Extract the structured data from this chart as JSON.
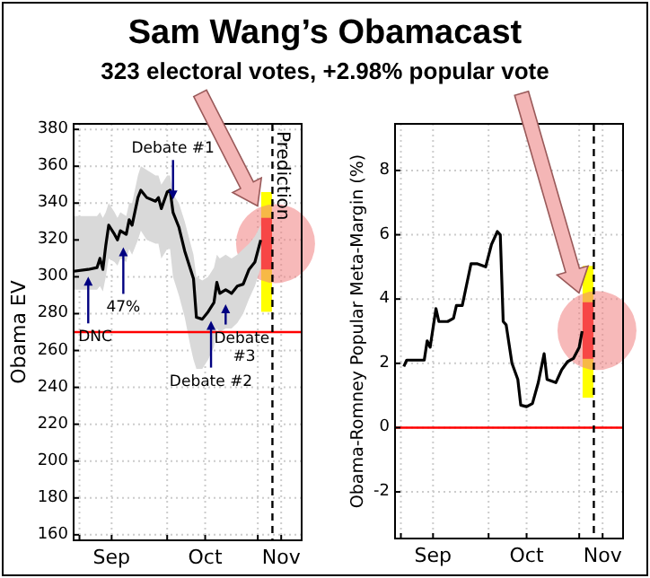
{
  "chart_data": [
    {
      "type": "line",
      "title": "Sam Wang’s Obamacast",
      "subtitle": "323 electoral votes, +2.98% popular vote",
      "ylabel": "Obama EV",
      "xlim": [
        "--08-30",
        "--11-16"
      ],
      "ylim": [
        157,
        383
      ],
      "yticks": [
        160,
        180,
        200,
        220,
        240,
        260,
        280,
        300,
        320,
        340,
        360,
        380
      ],
      "xticks": [
        {
          "value": "--09-01",
          "label": null
        },
        {
          "value": "--09-12",
          "label": "Sep"
        },
        {
          "value": "--10-01",
          "label": null
        },
        {
          "value": "--10-14",
          "label": "Oct"
        },
        {
          "value": "--11-01",
          "label": null
        },
        {
          "value": "--11-09",
          "label": "Nov"
        }
      ],
      "grid": true,
      "series": [
        {
          "color": "#000000",
          "x": [
            "--08-30",
            "--09-04",
            "--09-07",
            "--09-08",
            "--09-09",
            "--09-10",
            "--09-11",
            "--09-13",
            "--09-14",
            "--09-15",
            "--09-17",
            "--09-18",
            "--09-19",
            "--09-21",
            "--09-22",
            "--09-24",
            "--09-27",
            "--09-28",
            "--09-29",
            "--10-01",
            "--10-02",
            "--10-03",
            "--10-05",
            "--10-07",
            "--10-09",
            "--10-10",
            "--10-11",
            "--10-13",
            "--10-15",
            "--10-17",
            "--10-18",
            "--10-19",
            "--10-21",
            "--10-23",
            "--10-25",
            "--10-27",
            "--10-29",
            "--10-31",
            "--11-02"
          ],
          "values": [
            303,
            304,
            305,
            310,
            304,
            317,
            328,
            323,
            320,
            325,
            323,
            331,
            328,
            343,
            347,
            343,
            341,
            343,
            337,
            346,
            347,
            335,
            327,
            314,
            304,
            299,
            278,
            277,
            281,
            286,
            297,
            291,
            293,
            291,
            295,
            296,
            304,
            308,
            320
          ],
          "upper": [
            333,
            333,
            333,
            335,
            332,
            335,
            340,
            335,
            332,
            335,
            333,
            340,
            340,
            355,
            360,
            358,
            355,
            355,
            350,
            355,
            355,
            345,
            340,
            330,
            318,
            312,
            300,
            298,
            300,
            305,
            312,
            310,
            312,
            310,
            312,
            315,
            318,
            322,
            328
          ],
          "lower": [
            293,
            293,
            293,
            295,
            292,
            300,
            310,
            308,
            306,
            310,
            308,
            315,
            312,
            320,
            325,
            320,
            318,
            318,
            310,
            315,
            315,
            300,
            290,
            278,
            262,
            255,
            250,
            250,
            255,
            262,
            272,
            270,
            272,
            272,
            275,
            280,
            288,
            295,
            305
          ]
        },
        {
          "type": "bar",
          "color": "#ffff00",
          "x": [
            "--11-04"
          ],
          "base": [
            281
          ],
          "values": [
            65
          ]
        },
        {
          "type": "bar",
          "color": "#ff0000",
          "x": [
            "--11-04"
          ],
          "base": [
            304
          ],
          "values": [
            28
          ]
        }
      ],
      "ref_lines": [
        {
          "axis": "y",
          "value": 270,
          "color": "#ff0000"
        },
        {
          "axis": "x",
          "value": "--11-06",
          "label": "Prediction",
          "color": "#000000",
          "line_style": "dashed"
        }
      ],
      "annotations": [
        {
          "text": "Debate #1",
          "x": "--10-03",
          "y": 340
        },
        {
          "text": "47%",
          "x": "--09-16",
          "y": 318
        },
        {
          "text": "DNC",
          "x": "--09-04",
          "y": 302
        },
        {
          "text": "Debate #2",
          "x": "--10-16",
          "y": 278
        },
        {
          "text": "Debate #3",
          "x": "--10-21",
          "y": 287
        }
      ]
    },
    {
      "type": "line",
      "ylabel": "Obama-Romney Popular Meta-Margin (%)",
      "xlim": [
        "--08-30",
        "--11-16"
      ],
      "ylim": [
        -3.45,
        9.45
      ],
      "yticks": [
        -2,
        0,
        2,
        4,
        6,
        8
      ],
      "xticks": [
        {
          "value": "--09-01",
          "label": null
        },
        {
          "value": "--09-12",
          "label": "Sep"
        },
        {
          "value": "--10-01",
          "label": null
        },
        {
          "value": "--10-14",
          "label": "Oct"
        },
        {
          "value": "--11-01",
          "label": null
        },
        {
          "value": "--11-09",
          "label": "Nov"
        }
      ],
      "grid": true,
      "series": [
        {
          "color": "#000000",
          "x": [
            "--09-02",
            "--09-03",
            "--09-09",
            "--09-10",
            "--09-11",
            "--09-13",
            "--09-14",
            "--09-17",
            "--09-19",
            "--09-20",
            "--09-22",
            "--09-25",
            "--09-27",
            "--09-30",
            "--10-02",
            "--10-04",
            "--10-05",
            "--10-06",
            "--10-07",
            "--10-09",
            "--10-11",
            "--10-12",
            "--10-14",
            "--10-16",
            "--10-18",
            "--10-20",
            "--10-21",
            "--10-24",
            "--10-26",
            "--10-28",
            "--10-30",
            "--11-01",
            "--11-02"
          ],
          "values": [
            1.9,
            2.1,
            2.1,
            2.7,
            2.5,
            3.7,
            3.3,
            3.3,
            3.4,
            3.8,
            3.8,
            5.1,
            5.1,
            5.0,
            5.7,
            6.1,
            6.0,
            3.3,
            3.2,
            2.0,
            1.5,
            0.7,
            0.65,
            0.75,
            1.4,
            2.3,
            1.5,
            1.4,
            1.8,
            2.05,
            2.15,
            2.5,
            3.0
          ]
        },
        {
          "type": "bar",
          "color": "#ffff00",
          "x": [
            "--11-04"
          ],
          "base": [
            0.93
          ],
          "values": [
            4.1
          ]
        },
        {
          "type": "bar",
          "color": "#ff0000",
          "x": [
            "--11-04"
          ],
          "base": [
            2.14
          ],
          "values": [
            1.76
          ]
        }
      ],
      "ref_lines": [
        {
          "axis": "y",
          "value": 0,
          "color": "#ff0000"
        },
        {
          "axis": "x",
          "value": "--11-06",
          "color": "#000000",
          "line_style": "dashed"
        }
      ]
    }
  ]
}
